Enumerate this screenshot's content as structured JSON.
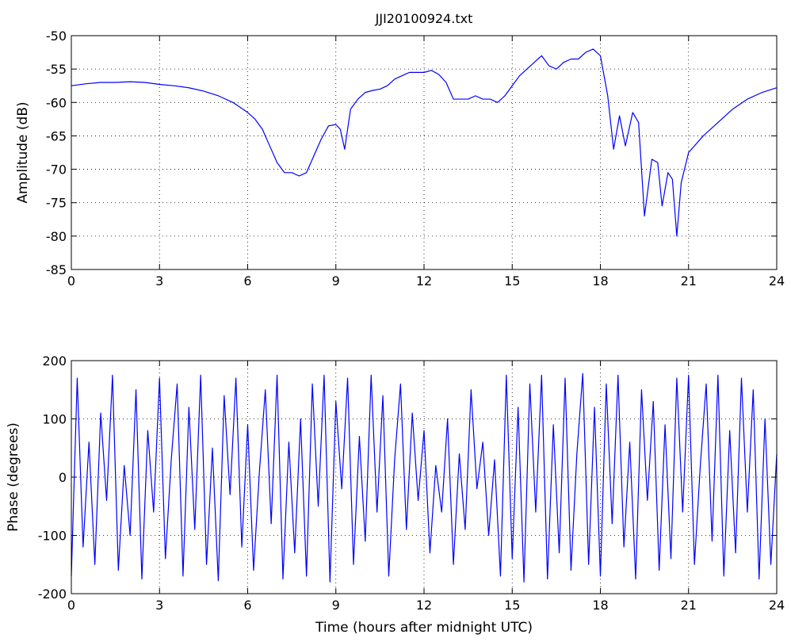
{
  "chart_data": [
    {
      "type": "line",
      "title": "JJI20100924.txt",
      "y_label": "Amplitude (dB)",
      "x": [
        0,
        0.5,
        1,
        1.5,
        2,
        2.5,
        3,
        3.5,
        4,
        4.5,
        5,
        5.5,
        6,
        6.25,
        6.5,
        6.75,
        7,
        7.25,
        7.5,
        7.75,
        8,
        8.25,
        8.5,
        8.75,
        9,
        9.15,
        9.3,
        9.5,
        9.75,
        10,
        10.25,
        10.5,
        10.75,
        11,
        11.25,
        11.5,
        11.75,
        12,
        12.25,
        12.5,
        12.75,
        13,
        13.25,
        13.5,
        13.75,
        14,
        14.25,
        14.5,
        14.75,
        15,
        15.25,
        15.5,
        15.75,
        16,
        16.25,
        16.5,
        16.75,
        17,
        17.25,
        17.5,
        17.75,
        18,
        18.25,
        18.45,
        18.65,
        18.85,
        19.1,
        19.3,
        19.5,
        19.75,
        19.95,
        20.1,
        20.3,
        20.45,
        20.6,
        20.75,
        21,
        21.5,
        22,
        22.5,
        23,
        23.5,
        24
      ],
      "values": [
        -57.5,
        -57.2,
        -57,
        -57,
        -56.9,
        -57,
        -57.3,
        -57.5,
        -57.8,
        -58.3,
        -59,
        -60,
        -61.5,
        -62.5,
        -64,
        -66.5,
        -69,
        -70.5,
        -70.5,
        -71,
        -70.5,
        -68,
        -65.5,
        -63.5,
        -63.3,
        -64,
        -67,
        -61,
        -59.5,
        -58.5,
        -58.2,
        -58,
        -57.5,
        -56.5,
        -56,
        -55.5,
        -55.5,
        -55.5,
        -55.2,
        -55.8,
        -57,
        -59.5,
        -59.5,
        -59.5,
        -59,
        -59.5,
        -59.5,
        -60,
        -59,
        -57.5,
        -56,
        -55,
        -54,
        -53,
        -54.5,
        -55,
        -54,
        -53.5,
        -53.5,
        -52.5,
        -52,
        -53,
        -59,
        -67,
        -62,
        -66.5,
        -61.5,
        -63,
        -77,
        -68.5,
        -69,
        -75.5,
        -70.5,
        -71.5,
        -80,
        -72,
        -67.5,
        -65,
        -63,
        -61,
        -59.5,
        -58.5,
        -57.8
      ],
      "color": "#0000ff",
      "xlim": [
        0,
        24
      ],
      "ylim": [
        -85,
        -50
      ],
      "xticks": [
        0,
        3,
        6,
        9,
        12,
        15,
        18,
        21,
        24
      ],
      "yticks": [
        -85,
        -80,
        -75,
        -70,
        -65,
        -60,
        -55,
        -50
      ],
      "grid": true
    },
    {
      "type": "line",
      "x_label": "Time (hours after midnight UTC)",
      "y_label": "Phase (degrees)",
      "x": [
        0,
        0.2,
        0.4,
        0.6,
        0.8,
        1,
        1.2,
        1.4,
        1.6,
        1.8,
        2,
        2.2,
        2.4,
        2.6,
        2.8,
        3,
        3.2,
        3.4,
        3.6,
        3.8,
        4,
        4.2,
        4.4,
        4.6,
        4.8,
        5,
        5.2,
        5.4,
        5.6,
        5.8,
        6,
        6.2,
        6.4,
        6.6,
        6.8,
        7,
        7.2,
        7.4,
        7.6,
        7.8,
        8,
        8.2,
        8.4,
        8.6,
        8.8,
        9,
        9.2,
        9.4,
        9.6,
        9.8,
        10,
        10.2,
        10.4,
        10.6,
        10.8,
        11,
        11.2,
        11.4,
        11.6,
        11.8,
        12,
        12.2,
        12.4,
        12.6,
        12.8,
        13,
        13.2,
        13.4,
        13.6,
        13.8,
        14,
        14.2,
        14.4,
        14.6,
        14.8,
        15,
        15.2,
        15.4,
        15.6,
        15.8,
        16,
        16.2,
        16.4,
        16.6,
        16.8,
        17,
        17.2,
        17.4,
        17.6,
        17.8,
        18,
        18.2,
        18.4,
        18.6,
        18.8,
        19,
        19.2,
        19.4,
        19.6,
        19.8,
        20,
        20.2,
        20.4,
        20.6,
        20.8,
        21,
        21.2,
        21.4,
        21.6,
        21.8,
        22,
        22.2,
        22.4,
        22.6,
        22.8,
        23,
        23.2,
        23.4,
        23.6,
        23.8,
        24
      ],
      "values": [
        -170,
        170,
        -120,
        60,
        -150,
        110,
        -40,
        175,
        -160,
        20,
        -100,
        150,
        -175,
        80,
        -60,
        170,
        -140,
        30,
        160,
        -170,
        120,
        -90,
        175,
        -150,
        50,
        -178,
        140,
        -30,
        170,
        -120,
        90,
        -160,
        10,
        150,
        -80,
        175,
        -175,
        60,
        -130,
        100,
        -170,
        160,
        -50,
        175,
        -180,
        130,
        -20,
        170,
        -150,
        70,
        -110,
        175,
        -60,
        140,
        -170,
        30,
        160,
        -90,
        110,
        -40,
        80,
        -130,
        20,
        -60,
        100,
        -150,
        40,
        -90,
        150,
        -20,
        60,
        -100,
        30,
        -170,
        175,
        -140,
        120,
        -180,
        160,
        -60,
        175,
        -175,
        90,
        -130,
        170,
        -160,
        40,
        178,
        -150,
        120,
        -170,
        160,
        -80,
        175,
        -120,
        60,
        -175,
        150,
        -40,
        130,
        -160,
        90,
        -140,
        170,
        -60,
        175,
        -150,
        20,
        160,
        -110,
        175,
        -170,
        80,
        -130,
        170,
        -60,
        150,
        -175,
        100,
        -150,
        40
      ],
      "color": "#0000ff",
      "xlim": [
        0,
        24
      ],
      "ylim": [
        -200,
        200
      ],
      "xticks": [
        0,
        3,
        6,
        9,
        12,
        15,
        18,
        21,
        24
      ],
      "yticks": [
        -200,
        -100,
        0,
        100,
        200
      ],
      "grid": true
    }
  ]
}
